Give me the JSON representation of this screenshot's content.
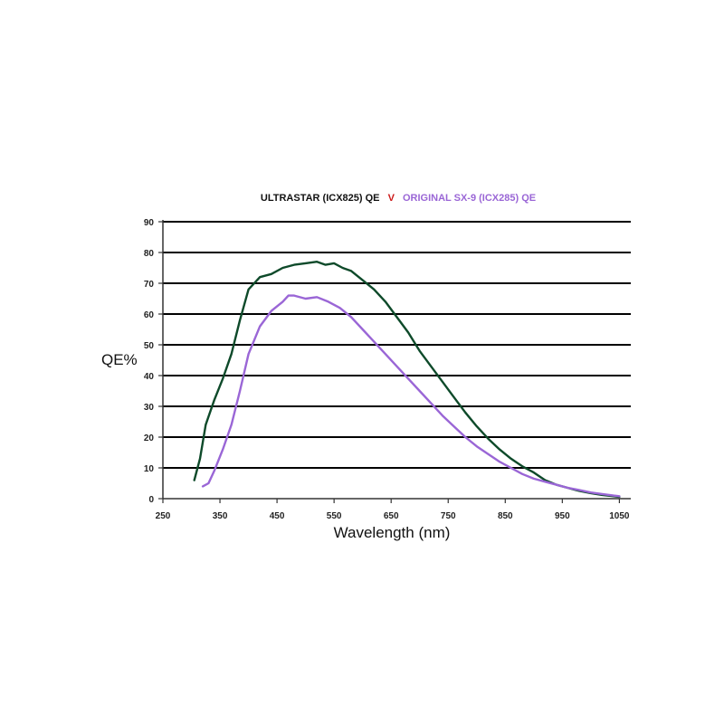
{
  "chart_data": {
    "type": "line",
    "title": {
      "part1": "ULTRASTAR (ICX825) QE",
      "separator": "V",
      "part2": "ORIGINAL SX-9 (ICX285) QE"
    },
    "xlabel": "Wavelength (nm)",
    "ylabel": "QE%",
    "xlim": [
      250,
      1070
    ],
    "ylim": [
      0,
      90
    ],
    "x_ticks": [
      250,
      350,
      450,
      550,
      650,
      750,
      850,
      950,
      1050
    ],
    "y_ticks": [
      0,
      10,
      20,
      30,
      40,
      50,
      60,
      70,
      80,
      90
    ],
    "grid": "horizontal",
    "series": [
      {
        "name": "ULTRASTAR (ICX825) QE",
        "color": "#0e4a2a",
        "x": [
          305,
          315,
          325,
          340,
          355,
          370,
          385,
          400,
          420,
          440,
          460,
          480,
          500,
          520,
          535,
          550,
          565,
          580,
          600,
          620,
          640,
          660,
          680,
          700,
          720,
          740,
          760,
          780,
          800,
          820,
          840,
          860,
          880,
          900,
          920,
          940,
          960,
          980,
          1000,
          1020,
          1040,
          1050
        ],
        "y": [
          6,
          13,
          24,
          32,
          39,
          47,
          58,
          68,
          72,
          73,
          75,
          76,
          76.5,
          77,
          76,
          76.5,
          75,
          74,
          71,
          68,
          64,
          59,
          54,
          48,
          43,
          38,
          33,
          28,
          23.5,
          19.5,
          16,
          13,
          10.5,
          8.5,
          6,
          4.5,
          3.5,
          2.5,
          1.8,
          1.2,
          0.8,
          0.6
        ]
      },
      {
        "name": "ORIGINAL SX-9 (ICX285) QE",
        "color": "#9a66d6",
        "x": [
          320,
          330,
          340,
          355,
          370,
          385,
          400,
          420,
          440,
          460,
          470,
          480,
          500,
          520,
          540,
          560,
          580,
          600,
          620,
          640,
          660,
          680,
          700,
          720,
          740,
          760,
          780,
          800,
          820,
          840,
          860,
          880,
          900,
          920,
          940,
          960,
          980,
          1000,
          1020,
          1040,
          1050
        ],
        "y": [
          4,
          5,
          9,
          16,
          24,
          35,
          47,
          56,
          61,
          64,
          66,
          66,
          65,
          65.5,
          64,
          62,
          59,
          55,
          51,
          47,
          43,
          39,
          35,
          31,
          27,
          23.5,
          20,
          17,
          14.5,
          12,
          10,
          8,
          6.5,
          5.5,
          4.5,
          3.5,
          2.8,
          2,
          1.5,
          1,
          0.8
        ]
      }
    ]
  }
}
